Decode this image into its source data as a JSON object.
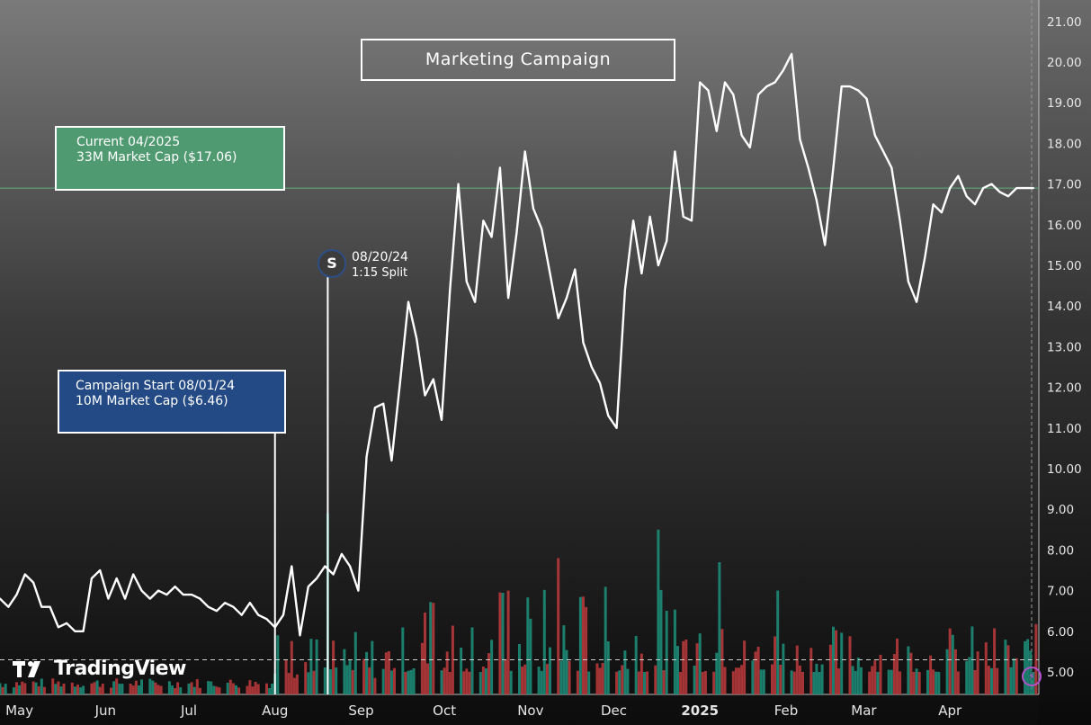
{
  "chart_data": {
    "type": "line",
    "title": "Marketing Campaign",
    "x_tick_labels": [
      "May",
      "Jun",
      "Jul",
      "Aug",
      "Sep",
      "Oct",
      "Nov",
      "Dec",
      "2025",
      "Feb",
      "Mar",
      "Apr"
    ],
    "y_tick_labels": [
      "5.00",
      "6.00",
      "7.00",
      "8.00",
      "9.00",
      "10.00",
      "11.00",
      "12.00",
      "13.00",
      "14.00",
      "15.00",
      "16.00",
      "17.00",
      "18.00",
      "19.00",
      "20.00",
      "21.00"
    ],
    "ylim": [
      4.6,
      21.2
    ],
    "x_start": "2024-04-24",
    "x_end": "2025-05-03",
    "current_price_line": 16.9,
    "volume_average_level": 5.3,
    "series": [
      {
        "kind": "price",
        "x": [
          "2024-04-24",
          "2024-04-27",
          "2024-04-30",
          "2024-05-03",
          "2024-05-06",
          "2024-05-09",
          "2024-05-12",
          "2024-05-15",
          "2024-05-18",
          "2024-05-21",
          "2024-05-24",
          "2024-05-27",
          "2024-05-30",
          "2024-06-02",
          "2024-06-05",
          "2024-06-08",
          "2024-06-11",
          "2024-06-14",
          "2024-06-17",
          "2024-06-20",
          "2024-06-23",
          "2024-06-26",
          "2024-06-29",
          "2024-07-02",
          "2024-07-05",
          "2024-07-08",
          "2024-07-11",
          "2024-07-14",
          "2024-07-17",
          "2024-07-20",
          "2024-07-23",
          "2024-07-26",
          "2024-07-29",
          "2024-08-01",
          "2024-08-04",
          "2024-08-07",
          "2024-08-10",
          "2024-08-13",
          "2024-08-16",
          "2024-08-19",
          "2024-08-22",
          "2024-08-25",
          "2024-08-28",
          "2024-08-31",
          "2024-09-03",
          "2024-09-06",
          "2024-09-09",
          "2024-09-12",
          "2024-09-15",
          "2024-09-18",
          "2024-09-21",
          "2024-09-24",
          "2024-09-27",
          "2024-09-30",
          "2024-10-03",
          "2024-10-06",
          "2024-10-09",
          "2024-10-12",
          "2024-10-15",
          "2024-10-18",
          "2024-10-21",
          "2024-10-24",
          "2024-10-27",
          "2024-10-30",
          "2024-11-02",
          "2024-11-05",
          "2024-11-08",
          "2024-11-11",
          "2024-11-14",
          "2024-11-17",
          "2024-11-20",
          "2024-11-23",
          "2024-11-26",
          "2024-11-29",
          "2024-12-02",
          "2024-12-05",
          "2024-12-08",
          "2024-12-11",
          "2024-12-14",
          "2024-12-17",
          "2024-12-20",
          "2024-12-23",
          "2024-12-26",
          "2024-12-29",
          "2025-01-01",
          "2025-01-04",
          "2025-01-07",
          "2025-01-10",
          "2025-01-13",
          "2025-01-16",
          "2025-01-19",
          "2025-01-22",
          "2025-01-25",
          "2025-01-28",
          "2025-01-31",
          "2025-02-03",
          "2025-02-06",
          "2025-02-09",
          "2025-02-12",
          "2025-02-15",
          "2025-02-18",
          "2025-02-21",
          "2025-02-24",
          "2025-02-27",
          "2025-03-02",
          "2025-03-05",
          "2025-03-08",
          "2025-03-11",
          "2025-03-14",
          "2025-03-17",
          "2025-03-20",
          "2025-03-23",
          "2025-03-26",
          "2025-03-29",
          "2025-04-01",
          "2025-04-04",
          "2025-04-07",
          "2025-04-10",
          "2025-04-13",
          "2025-04-16",
          "2025-04-19",
          "2025-04-22",
          "2025-04-25",
          "2025-04-28",
          "2025-05-01"
        ],
        "y": [
          6.8,
          6.6,
          6.9,
          7.4,
          7.2,
          6.6,
          6.6,
          6.1,
          6.2,
          6.0,
          6.0,
          7.3,
          7.5,
          6.8,
          7.3,
          6.8,
          7.4,
          7.0,
          6.8,
          7.0,
          6.9,
          7.1,
          6.9,
          6.9,
          6.8,
          6.6,
          6.5,
          6.7,
          6.6,
          6.4,
          6.7,
          6.4,
          6.3,
          6.1,
          6.4,
          7.6,
          5.9,
          7.1,
          7.3,
          7.6,
          7.4,
          7.9,
          7.6,
          7.0,
          10.3,
          11.5,
          11.6,
          10.2,
          12.1,
          14.1,
          13.2,
          11.8,
          12.2,
          11.2,
          14.4,
          17.0,
          14.6,
          14.1,
          16.1,
          15.7,
          17.4,
          14.2,
          15.8,
          17.8,
          16.4,
          15.9,
          14.8,
          13.7,
          14.2,
          14.9,
          13.1,
          12.5,
          12.1,
          11.3,
          11.0,
          14.4,
          16.1,
          14.8,
          16.2,
          15.0,
          15.6,
          17.8,
          16.2,
          16.1,
          19.5,
          19.3,
          18.3,
          19.5,
          19.2,
          18.2,
          17.9,
          19.2,
          19.4,
          19.5,
          19.8,
          20.2,
          18.1,
          17.4,
          16.6,
          15.5,
          17.4,
          19.4,
          19.4,
          19.3,
          19.1,
          18.2,
          17.8,
          17.4,
          16.1,
          14.6,
          14.1,
          15.2,
          16.5,
          16.3,
          16.9,
          17.2,
          16.7,
          16.5,
          16.9,
          17.0,
          16.8,
          16.7,
          16.9,
          16.9,
          16.9
        ]
      },
      {
        "kind": "volume",
        "x": [
          "2024-08-02",
          "2024-08-20",
          "2024-09-27",
          "2024-10-24",
          "2024-11-11",
          "2024-12-14",
          "2024-12-17",
          "2025-01-08",
          "2025-01-29"
        ],
        "y": [
          5.9,
          8.9,
          6.7,
          7.0,
          7.8,
          6.6,
          8.5,
          7.7,
          7.0
        ]
      }
    ],
    "annotations": {
      "current_line1": "Current 04/2025",
      "current_line2": "33M Market Cap ($17.06)",
      "start_line1": "Campaign Start 08/01/24",
      "start_line2": "10M Market Cap ($6.46)",
      "split_marker": "S",
      "split_date": "08/20/24",
      "split_desc": "1:15 Split"
    },
    "event_dates": {
      "campaign_start": "2024-08-01",
      "split": "2024-08-20"
    },
    "colors": {
      "price": "#ffffff",
      "volume_up": "#1d8a76",
      "volume_down": "#b5383b",
      "current_box": "#4f9a71",
      "start_box": "#234a85",
      "current_line": "#5fae7d"
    }
  },
  "logo_text": "TradingView"
}
